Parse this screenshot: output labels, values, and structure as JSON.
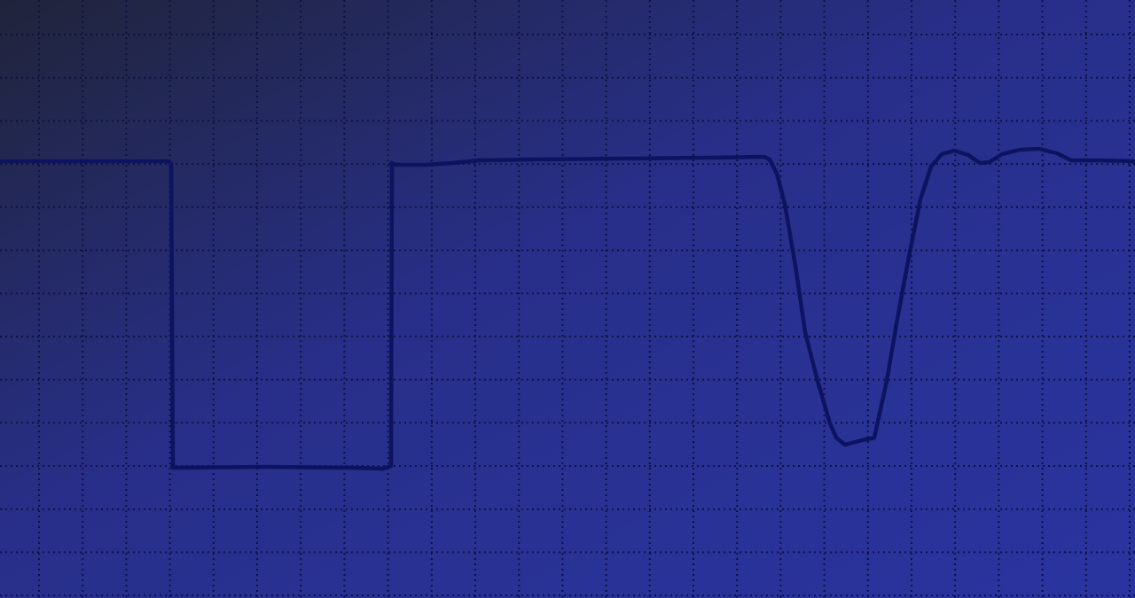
{
  "colors": {
    "background_top_left": "#20243a",
    "background_mid": "#282f8a",
    "background_bottom_right": "#2a34a0",
    "grid_line": "#0e1140",
    "trace": "#0c1460"
  },
  "grid": {
    "style": "dotted",
    "columns": 26,
    "rows": 14
  },
  "waveform": {
    "description_segments": [
      "square-pulse",
      "baseline",
      "v-shaped-dip",
      "settling-ripple"
    ]
  }
}
